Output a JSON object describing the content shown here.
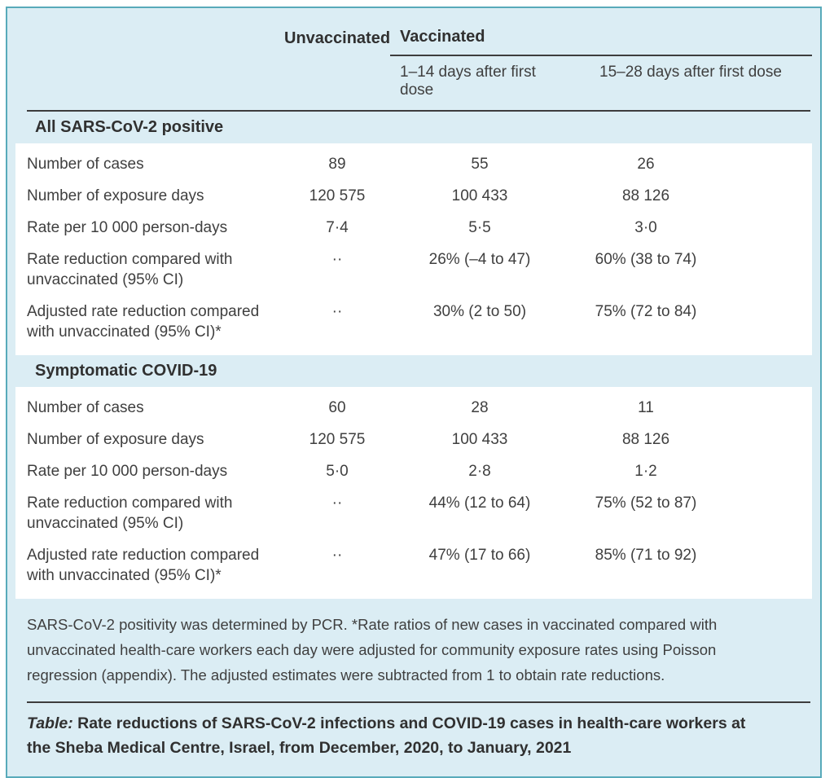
{
  "colors": {
    "card_bg": "#dbedf4",
    "card_border": "#58aaba",
    "rule": "#3d3d3d",
    "text": "#3f3f3f"
  },
  "table": {
    "columns": {
      "unvaccinated": "Unvaccinated",
      "vaccinated": "Vaccinated",
      "sub1": "1–14 days after first dose",
      "sub2": "15–28 days after first dose"
    },
    "sections": [
      {
        "title": "All SARS-CoV-2 positive",
        "rows": [
          {
            "label": "Number of cases",
            "unvaccinated": "89",
            "dose1": "55",
            "dose2": "26"
          },
          {
            "label": "Number of exposure days",
            "unvaccinated": "120 575",
            "dose1": "100 433",
            "dose2": "88 126"
          },
          {
            "label": "Rate per 10 000 person-days",
            "unvaccinated": "7·4",
            "dose1": "5·5",
            "dose2": "3·0"
          },
          {
            "label": "Rate reduction compared with unvaccinated (95% CI)",
            "unvaccinated": "··",
            "dose1": "26% (–4 to 47)",
            "dose2": "60% (38 to 74)"
          },
          {
            "label": "Adjusted rate reduction compared with unvaccinated (95% CI)*",
            "unvaccinated": "··",
            "dose1": "30% (2 to 50)",
            "dose2": "75% (72 to 84)"
          }
        ]
      },
      {
        "title": "Symptomatic COVID-19",
        "rows": [
          {
            "label": "Number of cases",
            "unvaccinated": "60",
            "dose1": "28",
            "dose2": "11"
          },
          {
            "label": "Number of exposure days",
            "unvaccinated": "120 575",
            "dose1": "100 433",
            "dose2": "88 126"
          },
          {
            "label": "Rate per 10 000 person-days",
            "unvaccinated": "5·0",
            "dose1": "2·8",
            "dose2": "1·2"
          },
          {
            "label": "Rate reduction compared with unvaccinated (95% CI)",
            "unvaccinated": "··",
            "dose1": "44% (12 to 64)",
            "dose2": "75% (52 to 87)"
          },
          {
            "label": "Adjusted rate reduction compared with unvaccinated (95% CI)*",
            "unvaccinated": "··",
            "dose1": "47% (17 to 66)",
            "dose2": "85% (71 to 92)"
          }
        ]
      }
    ],
    "footnote": "SARS-CoV-2 positivity was determined by PCR. *Rate ratios of new cases in vaccinated compared with unvaccinated health-care workers each day were adjusted for community exposure rates using Poisson regression (appendix). The adjusted estimates were subtracted from 1 to obtain rate reductions.",
    "caption_label": "Table:",
    "caption_text": " Rate reductions of SARS-CoV-2 infections and COVID-19 cases in health-care workers at the Sheba Medical Centre, Israel, from December, 2020, to January, 2021"
  }
}
